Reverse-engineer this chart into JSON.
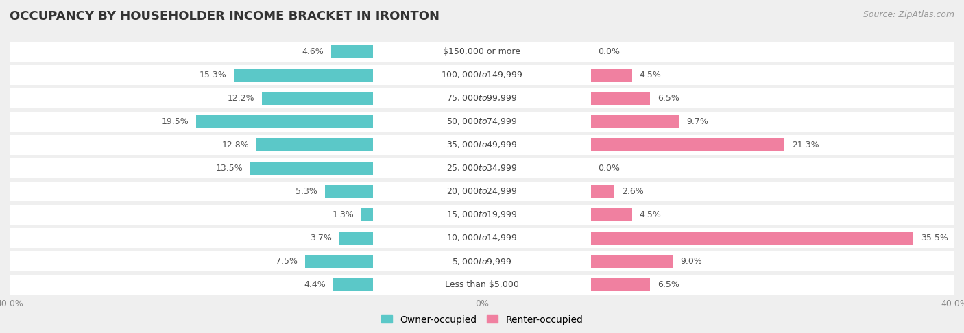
{
  "title": "OCCUPANCY BY HOUSEHOLDER INCOME BRACKET IN IRONTON",
  "source": "Source: ZipAtlas.com",
  "categories": [
    "Less than $5,000",
    "$5,000 to $9,999",
    "$10,000 to $14,999",
    "$15,000 to $19,999",
    "$20,000 to $24,999",
    "$25,000 to $34,999",
    "$35,000 to $49,999",
    "$50,000 to $74,999",
    "$75,000 to $99,999",
    "$100,000 to $149,999",
    "$150,000 or more"
  ],
  "owner_values": [
    4.4,
    7.5,
    3.7,
    1.3,
    5.3,
    13.5,
    12.8,
    19.5,
    12.2,
    15.3,
    4.6
  ],
  "renter_values": [
    6.5,
    9.0,
    35.5,
    4.5,
    2.6,
    0.0,
    21.3,
    9.7,
    6.5,
    4.5,
    0.0
  ],
  "owner_color": "#5bc8c8",
  "renter_color": "#f080a0",
  "background_color": "#efefef",
  "row_bg_color": "#ffffff",
  "row_alt_color": "#e8e8e8",
  "xlim": 40.0,
  "title_fontsize": 13,
  "source_fontsize": 9,
  "label_fontsize": 9,
  "value_fontsize": 9,
  "cat_fontsize": 9,
  "tick_fontsize": 9,
  "legend_fontsize": 10,
  "bar_height": 0.55
}
